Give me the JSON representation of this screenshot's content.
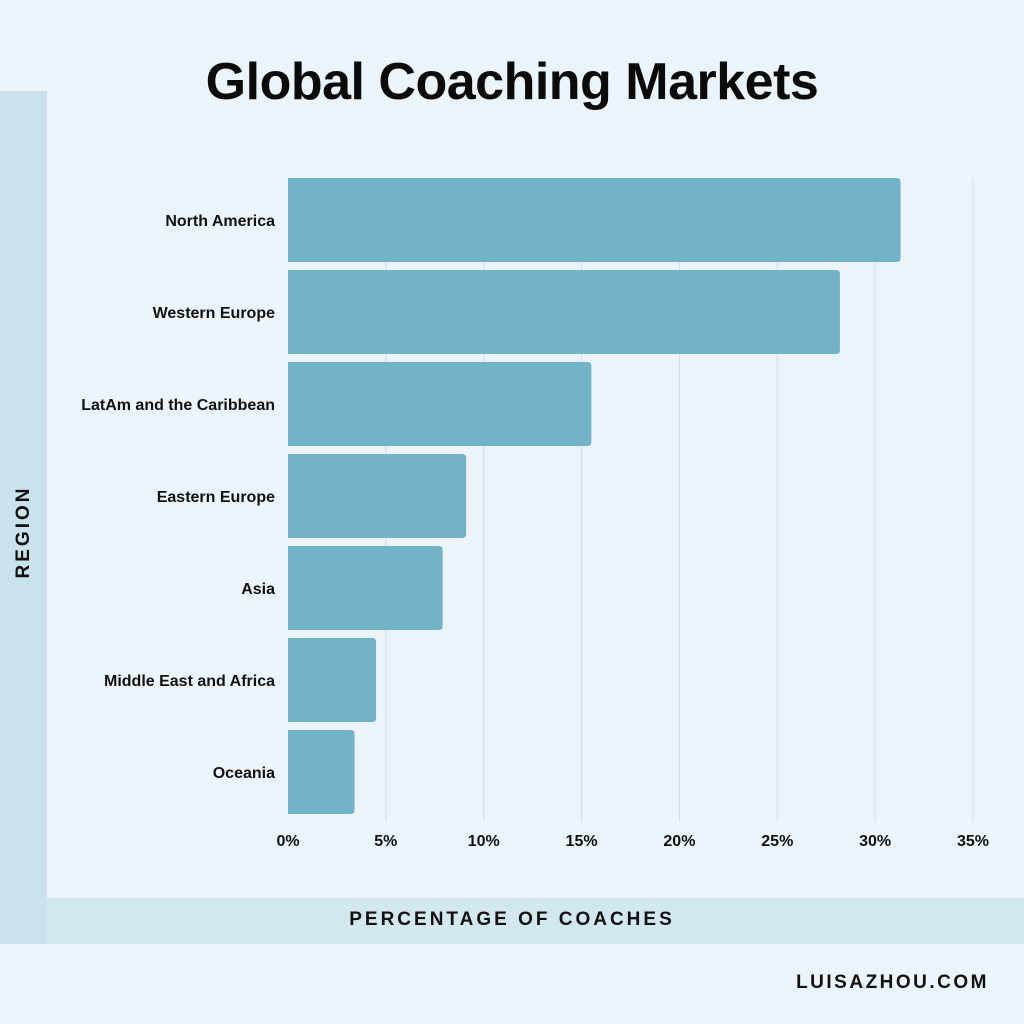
{
  "chart_data": {
    "type": "bar",
    "orientation": "horizontal",
    "title": "Global Coaching Markets",
    "xlabel": "PERCENTAGE OF COACHES",
    "ylabel": "REGION",
    "categories": [
      "North America",
      "Western Europe",
      "LatAm and the Caribbean",
      "Eastern Europe",
      "Asia",
      "Middle East and Africa",
      "Oceania"
    ],
    "values": [
      31.3,
      28.2,
      15.5,
      9.1,
      7.9,
      4.5,
      3.4
    ],
    "xlim": [
      0,
      35
    ],
    "xticks": [
      0,
      5,
      10,
      15,
      20,
      25,
      30,
      35
    ],
    "xtick_labels": [
      "0%",
      "5%",
      "10%",
      "15%",
      "20%",
      "25%",
      "30%",
      "35%"
    ],
    "grid": true,
    "bar_color": "#72b1c6"
  },
  "footer": {
    "credit": "LUISAZHOU.COM"
  }
}
